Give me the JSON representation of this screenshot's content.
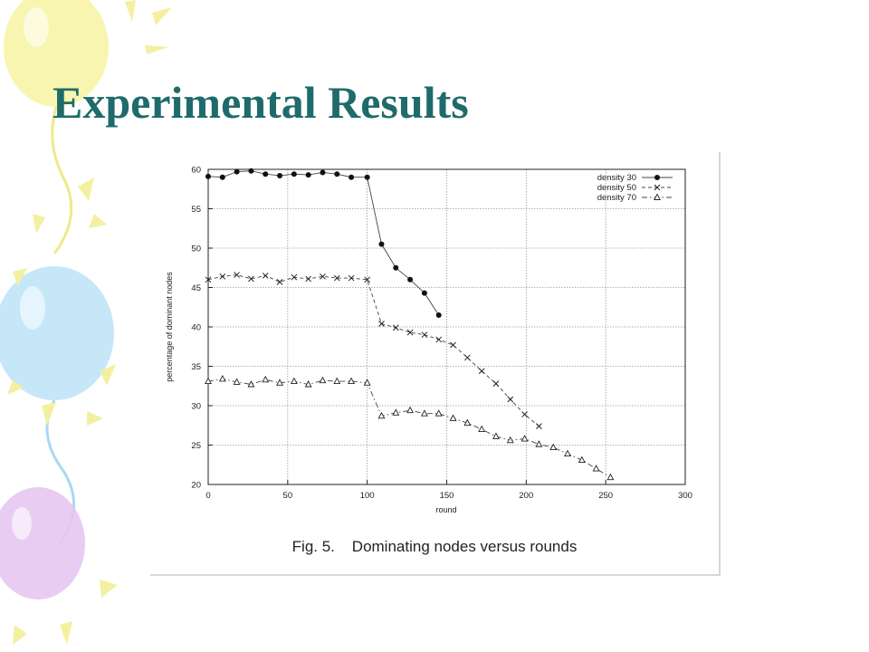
{
  "slide": {
    "title": "Experimental Results",
    "caption": "Fig. 5.    Dominating nodes versus rounds"
  },
  "colors": {
    "title": "#1f6b6b",
    "balloon_yellow": "#f6f4a6",
    "balloon_blue": "#bfe4f7",
    "balloon_purple": "#e6c7f1",
    "grid": "#999999"
  },
  "chart_data": {
    "type": "line",
    "xlabel": "round",
    "ylabel": "percentage of dominant nodes",
    "xlim": [
      0,
      300
    ],
    "ylim": [
      20,
      60
    ],
    "xticks": [
      0,
      50,
      100,
      150,
      200,
      250,
      300
    ],
    "yticks": [
      20,
      25,
      30,
      35,
      40,
      45,
      50,
      55,
      60
    ],
    "grid": true,
    "legend_position": "top-right",
    "series": [
      {
        "name": "density 30",
        "marker": "filled-circle",
        "line": "solid",
        "x": [
          0,
          9,
          18,
          27,
          36,
          45,
          54,
          63,
          72,
          81,
          90,
          100,
          109,
          118,
          127,
          136,
          145
        ],
        "y": [
          59.1,
          59.0,
          59.7,
          59.8,
          59.4,
          59.2,
          59.4,
          59.3,
          59.6,
          59.4,
          59.0,
          59.0,
          50.5,
          47.5,
          46.0,
          44.3,
          41.5
        ]
      },
      {
        "name": "density 50",
        "marker": "x",
        "line": "dashed",
        "x": [
          0,
          9,
          18,
          27,
          36,
          45,
          54,
          63,
          72,
          81,
          90,
          100,
          109,
          118,
          127,
          136,
          145,
          154,
          163,
          172,
          181,
          190,
          199,
          208
        ],
        "y": [
          46.0,
          46.4,
          46.6,
          46.1,
          46.5,
          45.7,
          46.3,
          46.1,
          46.4,
          46.2,
          46.2,
          46.0,
          40.4,
          39.9,
          39.3,
          39.0,
          38.4,
          37.7,
          36.1,
          34.4,
          32.8,
          30.8,
          28.9,
          27.4
        ]
      },
      {
        "name": "density 70",
        "marker": "triangle",
        "line": "dash-dot",
        "x": [
          0,
          9,
          18,
          27,
          36,
          45,
          54,
          63,
          72,
          81,
          90,
          100,
          109,
          118,
          127,
          136,
          145,
          154,
          163,
          172,
          181,
          190,
          199,
          208,
          217,
          226,
          235,
          244,
          253
        ],
        "y": [
          33.1,
          33.4,
          33.0,
          32.7,
          33.3,
          32.9,
          33.1,
          32.7,
          33.2,
          33.1,
          33.1,
          32.9,
          28.7,
          29.1,
          29.4,
          29.0,
          29.0,
          28.4,
          27.8,
          27.0,
          26.1,
          25.6,
          25.8,
          25.1,
          24.7,
          23.9,
          23.1,
          22.0,
          20.9
        ]
      }
    ]
  }
}
